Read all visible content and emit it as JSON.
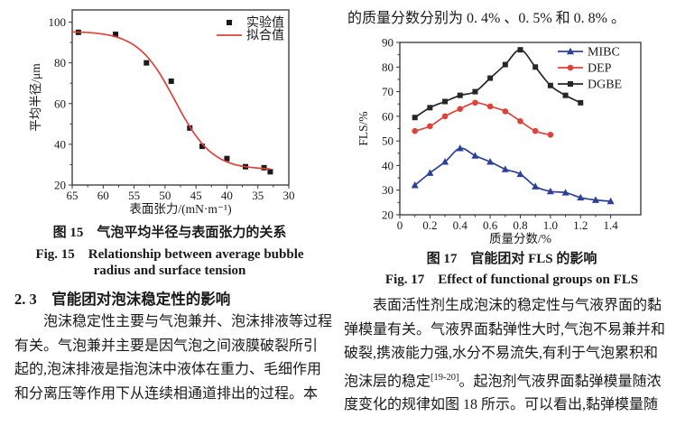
{
  "page": {
    "background": "#ffffff",
    "text_color": "#1a1a1a"
  },
  "left_column": {
    "fig15_caption_zh": "图 15　气泡平均半径与表面张力的关系",
    "fig15_caption_en_line1": "Fig. 15　Relationship between average bubble",
    "fig15_caption_en_line2": "radius and surface tension",
    "section_heading": "2. 3　官能团对泡沫稳定性的影响",
    "para_lines": [
      "泡沫稳定性主要与气泡兼并、泡沫排液等过程",
      "有关。气泡兼并主要是因气泡之间液膜破裂所引",
      "起的,泡沫排液是指泡沫中液体在重力、毛细作用",
      "和分离压等作用下从连续相通道排出的过程。本"
    ]
  },
  "right_column": {
    "intro_line": "的质量分数分别为 0. 4% 、0. 5% 和 0. 8% 。",
    "fig17_caption_zh": "图 17　官能团对 FLS 的影响",
    "fig17_caption_en": "Fig. 17　Effect of functional groups on FLS",
    "para_lines_a": [
      "表面活性剂生成泡沫的稳定性与气液界面的黏",
      "弹模量有关。气液界面黏弹性大时,气泡不易兼并和",
      "破裂,携液能力强,水分不易流失,有利于气泡累积和"
    ],
    "para_line4": {
      "pre": "泡沫层的稳定",
      "sup": "[19-20]",
      "post": "。起泡剂气液界面黏弹模量随浓"
    },
    "para_line5": "度变化的规律如图 18 所示。可以看出,黏弹模量随"
  },
  "chart_data": [
    {
      "type": "line",
      "title": "",
      "xlabel": "表面张力/(mN·m⁻¹)",
      "ylabel": "平均半径/μm",
      "xlim": [
        65,
        30
      ],
      "ylim": [
        20,
        106
      ],
      "xticks": [
        "65",
        "60",
        "55",
        "50",
        "45",
        "40",
        "35",
        "30"
      ],
      "yticks": [
        "20",
        "40",
        "60",
        "80",
        "100"
      ],
      "grid": false,
      "legend_position": "top-right",
      "series": [
        {
          "name": "实验值",
          "color": "#1a1a1a",
          "marker": "square",
          "line": false,
          "x": [
            64,
            58,
            53,
            49,
            46,
            44,
            40,
            37,
            34,
            33
          ],
          "y": [
            95,
            94,
            80,
            71,
            48,
            39,
            33,
            29,
            28.5,
            26.5
          ]
        },
        {
          "name": "拟合值",
          "color": "#e0423a",
          "marker": null,
          "line": true,
          "smooth": true,
          "x": [
            65,
            63,
            61,
            59,
            57,
            55,
            53,
            51,
            49,
            47,
            45,
            43,
            41,
            39,
            37,
            35,
            33
          ],
          "y": [
            95.2,
            95.0,
            94.5,
            93.6,
            91.8,
            88.7,
            83.4,
            75.4,
            64.9,
            53.7,
            44.1,
            37.1,
            32.8,
            30.3,
            29.0,
            28.3,
            27.9
          ]
        }
      ]
    },
    {
      "type": "line",
      "title": "",
      "xlabel": "质量分数/%",
      "ylabel": "FLS/%",
      "xlim": [
        0,
        1.6
      ],
      "ylim": [
        20,
        90
      ],
      "xticks": [
        "0",
        "0.2",
        "0.4",
        "0.6",
        "0.8",
        "1.0",
        "1.2",
        "1.4"
      ],
      "yticks": [
        "20",
        "30",
        "40",
        "50",
        "60",
        "70",
        "80",
        "90"
      ],
      "grid": false,
      "legend_position": "top-right",
      "series": [
        {
          "name": "MIBC",
          "color": "#2c409a",
          "marker": "triangle",
          "line": true,
          "smooth": true,
          "x": [
            0.1,
            0.2,
            0.3,
            0.4,
            0.5,
            0.6,
            0.7,
            0.8,
            0.9,
            1.0,
            1.1,
            1.2,
            1.3,
            1.4
          ],
          "y": [
            32,
            37,
            41.5,
            47,
            44,
            41.5,
            38.5,
            36.5,
            31.5,
            29.5,
            29,
            27,
            26,
            25.5
          ]
        },
        {
          "name": "DEP",
          "color": "#e0423a",
          "marker": "circle",
          "line": true,
          "smooth": true,
          "x": [
            0.1,
            0.2,
            0.3,
            0.4,
            0.5,
            0.6,
            0.7,
            0.8,
            0.9,
            1.0
          ],
          "y": [
            54,
            56,
            60,
            63,
            65.5,
            64,
            62,
            58,
            54,
            52.5
          ]
        },
        {
          "name": "DGBE",
          "color": "#262626",
          "marker": "square",
          "line": true,
          "smooth": true,
          "x": [
            0.1,
            0.2,
            0.3,
            0.4,
            0.5,
            0.6,
            0.7,
            0.8,
            0.9,
            1.0,
            1.1,
            1.2
          ],
          "y": [
            59.5,
            63.5,
            66,
            68.5,
            70,
            75.5,
            81,
            87,
            80,
            72.5,
            68.5,
            65.5
          ]
        }
      ]
    }
  ]
}
